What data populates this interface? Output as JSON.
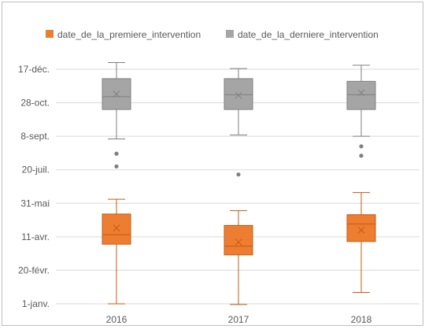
{
  "chart_data": {
    "type": "box",
    "categories": [
      "2016",
      "2017",
      "2018"
    ],
    "y_ticks": [
      "1-janv.",
      "20-févr.",
      "11-avr.",
      "31-mai",
      "20-juil.",
      "8-sept.",
      "28-oct.",
      "17-déc."
    ],
    "y_tick_values": [
      1,
      51,
      101,
      151,
      201,
      251,
      301,
      351
    ],
    "ylim": [
      1,
      351
    ],
    "legend_position": "top",
    "grid": "horizontal",
    "series": [
      {
        "name": "date_de_la_premiere_intervention",
        "color": "#ed7d31",
        "boxes": [
          {
            "min": 1,
            "q1": 90,
            "median": 104,
            "q3": 135,
            "max": 157,
            "mean": 114,
            "outliers": []
          },
          {
            "min": 0,
            "q1": 74,
            "median": 87,
            "q3": 118,
            "max": 140,
            "mean": 93,
            "outliers": []
          },
          {
            "min": 18,
            "q1": 94,
            "median": 120,
            "q3": 134,
            "max": 167,
            "mean": 111,
            "outliers": []
          }
        ]
      },
      {
        "name": "date_de_la_derniere_intervention",
        "color": "#a5a5a5",
        "boxes": [
          {
            "min": 247,
            "q1": 291,
            "median": 310,
            "q3": 337,
            "max": 361,
            "mean": 314,
            "outliers": [
              225,
              206
            ]
          },
          {
            "min": 253,
            "q1": 291,
            "median": 313,
            "q3": 337,
            "max": 352,
            "mean": 312,
            "outliers": [
              194
            ]
          },
          {
            "min": 251,
            "q1": 291,
            "median": 313,
            "q3": 333,
            "max": 357,
            "mean": 316,
            "outliers": [
              236,
              222
            ]
          }
        ]
      }
    ]
  }
}
